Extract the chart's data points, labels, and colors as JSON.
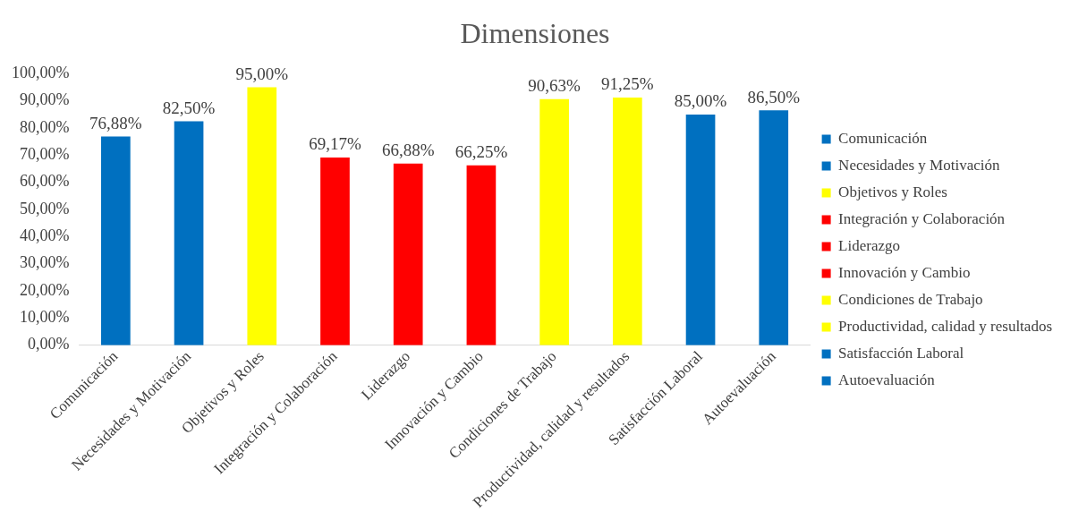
{
  "chart_data": {
    "type": "bar",
    "title": "Dimensiones",
    "categories": [
      "Comunicación",
      "Necesidades y Motivación",
      "Objetivos y Roles",
      "Integración y Colaboración",
      "Liderazgo",
      "Innovación y Cambio",
      "Condiciones de Trabajo",
      "Productividad, calidad y resultados",
      "Satisfacción Laboral",
      "Autoevaluación"
    ],
    "series": [
      {
        "name": "Comunicación",
        "color": "#0070c0",
        "values": [
          76.88,
          null,
          null,
          null,
          null,
          null,
          null,
          null,
          null,
          null
        ],
        "value_labels": [
          "76,88%",
          null,
          null,
          null,
          null,
          null,
          null,
          null,
          null,
          null
        ]
      },
      {
        "name": "Necesidades y Motivación",
        "color": "#0070c0",
        "values": [
          null,
          82.5,
          null,
          null,
          null,
          null,
          null,
          null,
          null,
          null
        ],
        "value_labels": [
          null,
          "82,50%",
          null,
          null,
          null,
          null,
          null,
          null,
          null,
          null
        ]
      },
      {
        "name": "Objetivos y Roles",
        "color": "#ffff00",
        "values": [
          null,
          null,
          95,
          null,
          null,
          null,
          null,
          null,
          null,
          null
        ],
        "value_labels": [
          null,
          null,
          "95,00%",
          null,
          null,
          null,
          null,
          null,
          null,
          null
        ]
      },
      {
        "name": "Integración y Colaboración",
        "color": "#ff0000",
        "values": [
          null,
          null,
          null,
          69.17,
          null,
          null,
          null,
          null,
          null,
          null
        ],
        "value_labels": [
          null,
          null,
          null,
          "69,17%",
          null,
          null,
          null,
          null,
          null,
          null
        ]
      },
      {
        "name": "Liderazgo",
        "color": "#ff0000",
        "values": [
          null,
          null,
          null,
          null,
          66.88,
          null,
          null,
          null,
          null,
          null
        ],
        "value_labels": [
          null,
          null,
          null,
          null,
          "66,88%",
          null,
          null,
          null,
          null,
          null
        ]
      },
      {
        "name": "Innovación y Cambio",
        "color": "#ff0000",
        "values": [
          null,
          null,
          null,
          null,
          null,
          66.25,
          null,
          null,
          null,
          null
        ],
        "value_labels": [
          null,
          null,
          null,
          null,
          null,
          "66,25%",
          null,
          null,
          null,
          null
        ]
      },
      {
        "name": "Condiciones de Trabajo",
        "color": "#ffff00",
        "values": [
          null,
          null,
          null,
          null,
          null,
          null,
          90.63,
          null,
          null,
          null
        ],
        "value_labels": [
          null,
          null,
          null,
          null,
          null,
          null,
          "90,63%",
          null,
          null,
          null
        ]
      },
      {
        "name": "Productividad, calidad y resultados",
        "color": "#ffff00",
        "values": [
          null,
          null,
          null,
          null,
          null,
          null,
          null,
          91.25,
          null,
          null
        ],
        "value_labels": [
          null,
          null,
          null,
          null,
          null,
          null,
          null,
          "91,25%",
          null,
          null
        ]
      },
      {
        "name": "Satisfacción Laboral",
        "color": "#0070c0",
        "values": [
          null,
          null,
          null,
          null,
          null,
          null,
          null,
          null,
          85,
          null
        ],
        "value_labels": [
          null,
          null,
          null,
          null,
          null,
          null,
          null,
          null,
          "85,00%",
          null
        ]
      },
      {
        "name": "Autoevaluación",
        "color": "#0070c0",
        "values": [
          null,
          null,
          null,
          null,
          null,
          null,
          null,
          null,
          null,
          86.5
        ],
        "value_labels": [
          null,
          null,
          null,
          null,
          null,
          null,
          null,
          null,
          null,
          "86,50%"
        ]
      }
    ],
    "ylim": [
      0,
      100
    ],
    "yticks": [
      {
        "value": 0,
        "label": "0,00%"
      },
      {
        "value": 10,
        "label": "10,00%"
      },
      {
        "value": 20,
        "label": "20,00%"
      },
      {
        "value": 30,
        "label": "30,00%"
      },
      {
        "value": 40,
        "label": "40,00%"
      },
      {
        "value": 50,
        "label": "50,00%"
      },
      {
        "value": 60,
        "label": "60,00%"
      },
      {
        "value": 70,
        "label": "70,00%"
      },
      {
        "value": 80,
        "label": "80,00%"
      },
      {
        "value": 90,
        "label": "90,00%"
      },
      {
        "value": 100,
        "label": "100,00%"
      }
    ],
    "grid": false,
    "legend": "right"
  }
}
